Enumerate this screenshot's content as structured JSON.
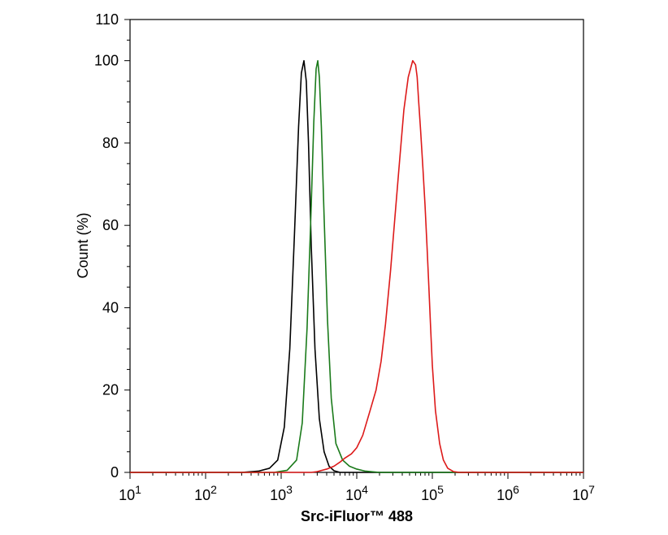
{
  "chart_data": {
    "type": "line",
    "title": "",
    "xlabel": "Src-iFluor™ 488",
    "ylabel": "Count  (%)",
    "x_scale": "log",
    "xlim": [
      10,
      10000000
    ],
    "ylim": [
      0,
      110
    ],
    "x_ticks": [
      {
        "value": 10,
        "base": "10",
        "exp": "1"
      },
      {
        "value": 100,
        "base": "10",
        "exp": "2"
      },
      {
        "value": 1000,
        "base": "10",
        "exp": "3"
      },
      {
        "value": 10000,
        "base": "10",
        "exp": "4"
      },
      {
        "value": 100000,
        "base": "10",
        "exp": "5"
      },
      {
        "value": 1000000,
        "base": "10",
        "exp": "6"
      },
      {
        "value": 10000000,
        "base": "10",
        "exp": "7"
      }
    ],
    "y_ticks": [
      0,
      20,
      40,
      60,
      80,
      100,
      110
    ],
    "grid": false,
    "legend": "none",
    "series": [
      {
        "color": "#000000",
        "x": [
          10,
          300,
          500,
          700,
          900,
          1100,
          1300,
          1500,
          1700,
          1850,
          2000,
          2150,
          2300,
          2500,
          2800,
          3200,
          3700,
          4300,
          5000,
          6000,
          10000000
        ],
        "y": [
          0,
          0,
          0.3,
          1,
          3,
          11,
          30,
          58,
          84,
          97,
          100,
          95,
          80,
          55,
          30,
          13,
          5,
          1.5,
          0.4,
          0,
          0
        ]
      },
      {
        "color": "#1a7a1a",
        "x": [
          10,
          800,
          1200,
          1600,
          1900,
          2200,
          2500,
          2700,
          2900,
          3050,
          3200,
          3400,
          3700,
          4100,
          4600,
          5300,
          6500,
          8000,
          10000,
          13000,
          20000,
          10000000
        ],
        "y": [
          0,
          0,
          0.5,
          3,
          12,
          35,
          65,
          85,
          98,
          100,
          96,
          84,
          62,
          37,
          18,
          7,
          3,
          1.5,
          0.8,
          0.3,
          0,
          0
        ]
      },
      {
        "color": "#dd1a1a",
        "x": [
          10,
          2500,
          3000,
          4000,
          5000,
          6000,
          7000,
          8500,
          10000,
          12000,
          15000,
          18000,
          21000,
          24000,
          28000,
          32000,
          37000,
          42000,
          48000,
          55000,
          60000,
          63000,
          66000,
          70000,
          75000,
          80000,
          85000,
          90000,
          95000,
          100000,
          110000,
          125000,
          140000,
          160000,
          190000,
          230000,
          10000000
        ],
        "y": [
          0,
          0,
          0.2,
          0.8,
          1.5,
          2.5,
          3.5,
          4.5,
          6,
          9,
          15,
          20,
          27,
          36,
          49,
          62,
          76,
          88,
          96,
          100,
          99,
          96,
          90,
          83,
          74,
          65,
          55,
          45,
          35,
          26,
          15,
          7,
          3,
          1,
          0.2,
          0,
          0
        ]
      }
    ]
  }
}
